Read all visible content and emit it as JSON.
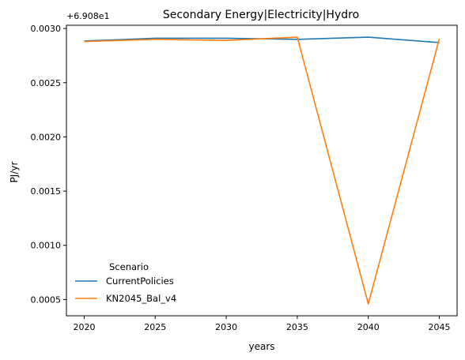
{
  "chart_data": {
    "type": "line",
    "title": "Secondary Energy|Electricity|Hydro",
    "xlabel": "years",
    "ylabel": "PJ/yr",
    "offset_label": "+6.908e1",
    "x": [
      2020,
      2025,
      2030,
      2035,
      2040,
      2045
    ],
    "x_ticks": [
      "2020",
      "2025",
      "2030",
      "2035",
      "2040",
      "2045"
    ],
    "y_ticks": [
      "0.0005",
      "0.0010",
      "0.0015",
      "0.0020",
      "0.0025",
      "0.0030"
    ],
    "xlim": [
      2018.75,
      2046.25
    ],
    "ylim": [
      0.00035,
      0.00303
    ],
    "grid": false,
    "legend": {
      "title": "Scenario",
      "placement": "lower-left"
    },
    "series": [
      {
        "name": "CurrentPolicies",
        "color": "#1f77b4",
        "values": [
          0.002885,
          0.00291,
          0.00291,
          0.0029,
          0.00292,
          0.00287
        ]
      },
      {
        "name": "KN2045_Bal_v4",
        "color": "#ff7f0e",
        "values": [
          0.00288,
          0.0029,
          0.00289,
          0.00292,
          0.00046,
          0.002905
        ]
      }
    ]
  }
}
